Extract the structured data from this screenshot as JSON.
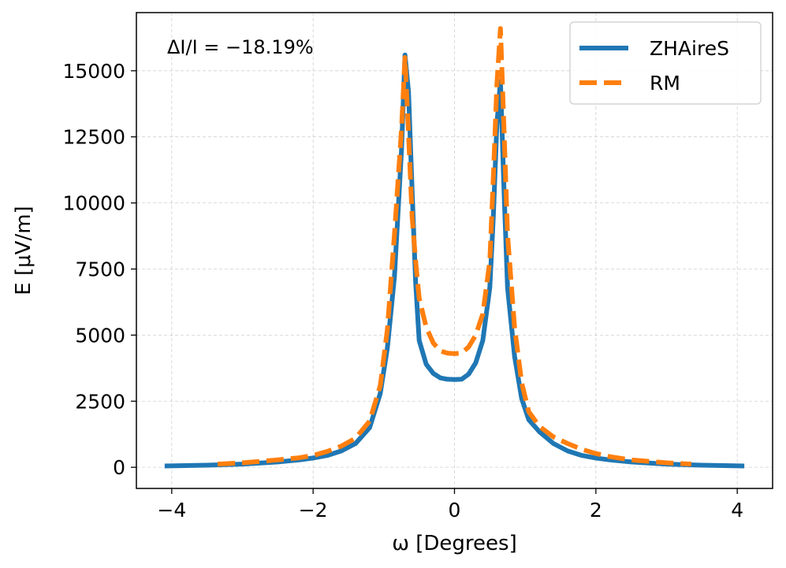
{
  "chart_data": {
    "type": "line",
    "title": "",
    "xlabel": "ω [Degrees]",
    "ylabel": "E [μV/m]",
    "xlim": [
      -4.5,
      4.5
    ],
    "ylim": [
      -800,
      17200
    ],
    "xticks": [
      -4,
      -2,
      0,
      2,
      4
    ],
    "xtick_labels": [
      "−4",
      "−2",
      "0",
      "2",
      "4"
    ],
    "yticks": [
      0,
      2500,
      5000,
      7500,
      10000,
      12500,
      15000
    ],
    "ytick_labels": [
      "0",
      "2500",
      "5000",
      "7500",
      "10000",
      "12500",
      "15000"
    ],
    "grid": true,
    "legend_position": "top-right",
    "annotation": "ΔI/I = −18.19%",
    "series": [
      {
        "name": "ZHAireS",
        "color": "#1f77b4",
        "style": "solid",
        "x": [
          -4.1,
          -3.5,
          -3.0,
          -2.5,
          -2.2,
          -2.0,
          -1.8,
          -1.6,
          -1.4,
          -1.2,
          -1.05,
          -0.95,
          -0.85,
          -0.75,
          -0.7,
          -0.65,
          -0.6,
          -0.55,
          -0.5,
          -0.4,
          -0.3,
          -0.2,
          -0.1,
          0.0,
          0.1,
          0.2,
          0.3,
          0.4,
          0.5,
          0.55,
          0.6,
          0.65,
          0.7,
          0.75,
          0.85,
          0.95,
          1.05,
          1.2,
          1.4,
          1.6,
          1.8,
          2.0,
          2.2,
          2.5,
          3.0,
          3.5,
          4.1
        ],
        "values": [
          50,
          80,
          120,
          200,
          280,
          350,
          450,
          620,
          900,
          1500,
          2800,
          4500,
          7200,
          12000,
          15600,
          14200,
          10500,
          7000,
          4800,
          3900,
          3550,
          3380,
          3330,
          3320,
          3330,
          3520,
          3950,
          4800,
          6800,
          9500,
          13000,
          14600,
          10500,
          6800,
          4200,
          2600,
          1800,
          1350,
          900,
          620,
          450,
          350,
          280,
          200,
          120,
          80,
          50
        ]
      },
      {
        "name": "RM",
        "color": "#ff7f0e",
        "style": "dashed",
        "x": [
          -3.35,
          -3.0,
          -2.5,
          -2.2,
          -2.0,
          -1.8,
          -1.6,
          -1.4,
          -1.2,
          -1.05,
          -0.95,
          -0.85,
          -0.75,
          -0.7,
          -0.65,
          -0.6,
          -0.55,
          -0.5,
          -0.4,
          -0.3,
          -0.2,
          -0.1,
          0.0,
          0.1,
          0.2,
          0.3,
          0.4,
          0.5,
          0.55,
          0.6,
          0.65,
          0.7,
          0.75,
          0.85,
          0.95,
          1.05,
          1.2,
          1.4,
          1.6,
          1.8,
          2.0,
          2.2,
          2.5,
          3.0,
          3.35
        ],
        "values": [
          120,
          170,
          280,
          360,
          450,
          600,
          800,
          1100,
          1750,
          3100,
          5200,
          8800,
          12800,
          15500,
          12600,
          9500,
          7800,
          6400,
          5300,
          4700,
          4400,
          4320,
          4300,
          4320,
          4550,
          5000,
          5800,
          7800,
          11000,
          14500,
          16600,
          12800,
          8800,
          5300,
          3200,
          2100,
          1550,
          1150,
          900,
          680,
          520,
          400,
          280,
          170,
          120
        ]
      }
    ]
  }
}
